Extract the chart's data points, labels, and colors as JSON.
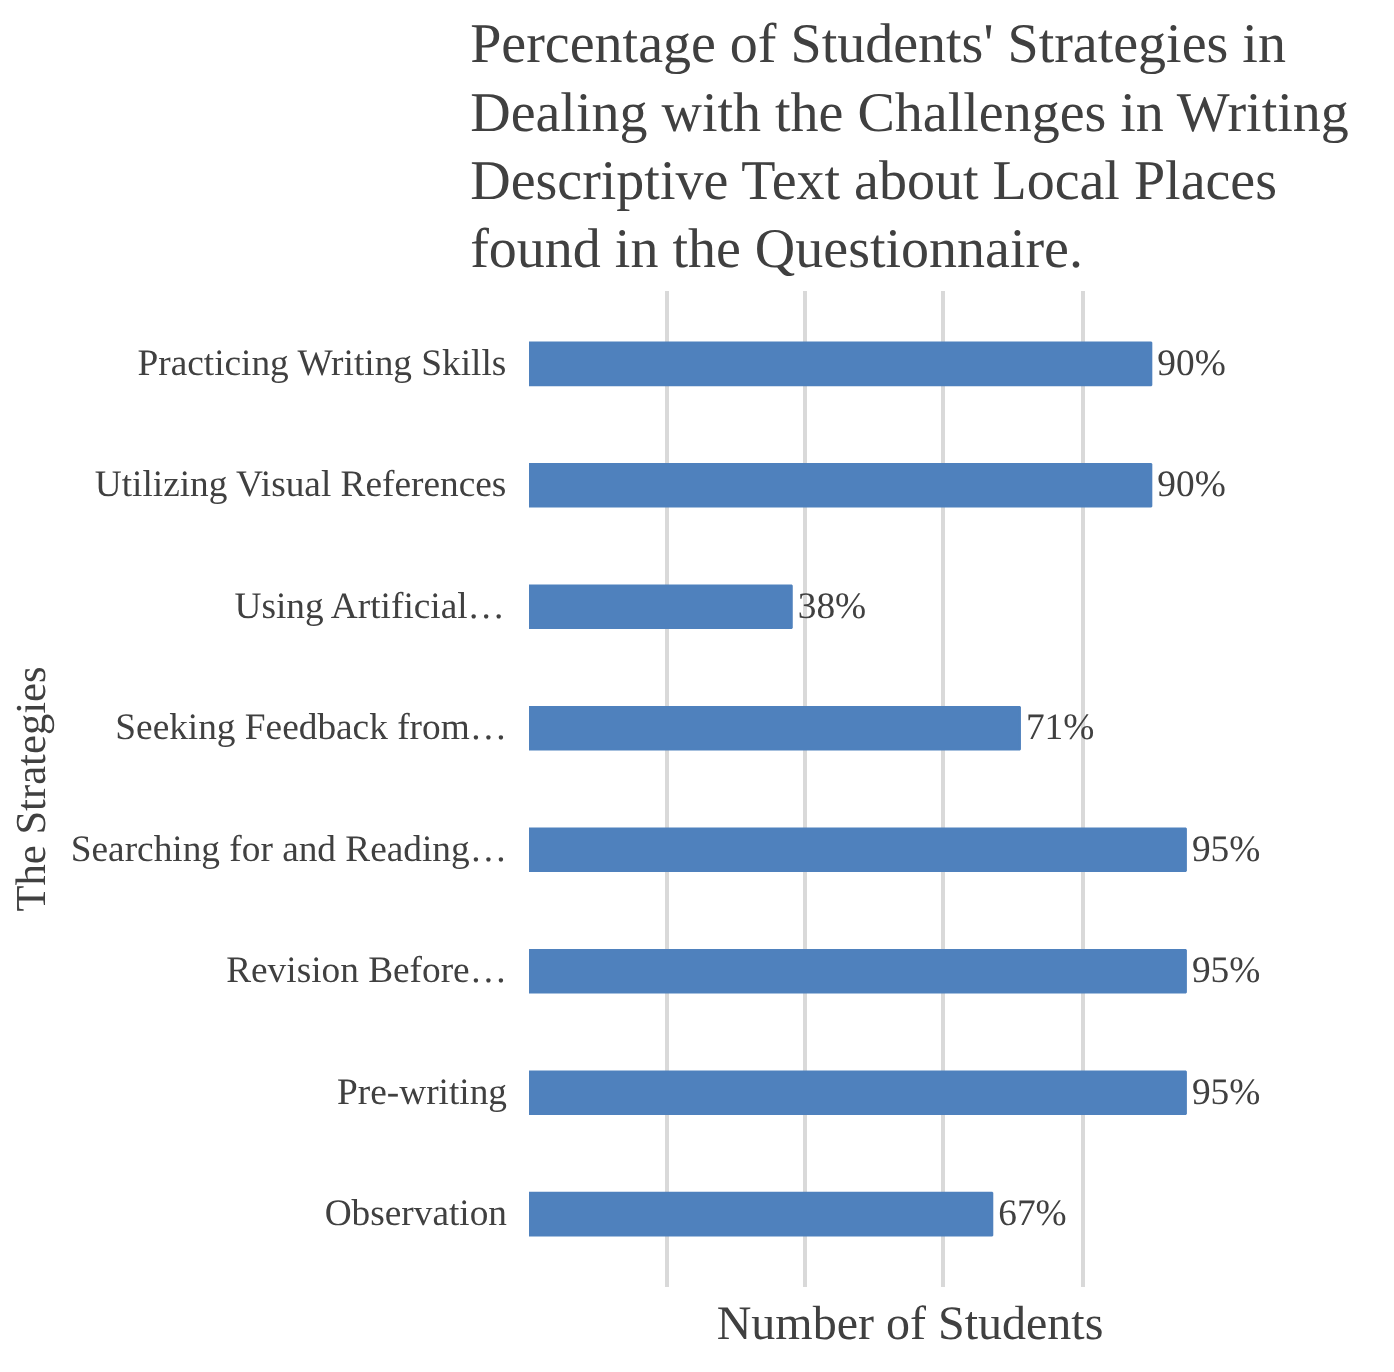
{
  "chart_data": {
    "type": "bar",
    "orientation": "horizontal",
    "title": "Percentage of Students' Strategies in Dealing with the Challenges in Writing Descriptive Text about Local Places found in the Questionnaire.",
    "xlabel": "Number of Students",
    "ylabel": "The Strategies",
    "categories": [
      "Practicing Writing Skills",
      "Utilizing Visual References",
      "Using Artificial…",
      "Seeking Feedback from…",
      "Searching for and Reading…",
      "Revision Before…",
      "Pre-writing",
      "Observation"
    ],
    "values": [
      90,
      90,
      38,
      71,
      95,
      95,
      95,
      67
    ],
    "value_labels": [
      "90%",
      "90%",
      "38%",
      "71%",
      "95%",
      "95%",
      "95%",
      "67%"
    ],
    "color": "#4f81bd",
    "xticks": [
      {
        "value": 20,
        "label": null
      },
      {
        "value": 40,
        "label": null
      },
      {
        "value": 60,
        "label": null
      },
      {
        "value": 80,
        "label": null
      }
    ],
    "grid": "x"
  }
}
